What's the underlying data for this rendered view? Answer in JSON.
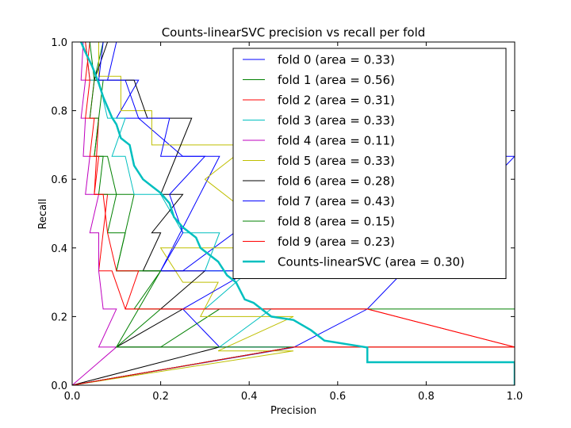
{
  "chart_data": {
    "type": "line",
    "title": "Counts-linearSVC precision vs recall per fold",
    "xlabel": "Precision",
    "ylabel": "Recall",
    "xlim": [
      0.0,
      1.0
    ],
    "ylim": [
      0.0,
      1.0
    ],
    "xticks": [
      "0.0",
      "0.2",
      "0.4",
      "0.6",
      "0.8",
      "1.0"
    ],
    "yticks": [
      "0.0",
      "0.2",
      "0.4",
      "0.6",
      "0.8",
      "1.0"
    ],
    "grid": false,
    "legend_position": "upper-right",
    "series": [
      {
        "name": "fold 0 (area = 0.33)",
        "color": "#0000ff",
        "width": 1,
        "points": [
          [
            0.0,
            0.0
          ],
          [
            0.5,
            0.11
          ],
          [
            0.667,
            0.222
          ],
          [
            1.0,
            0.667
          ],
          [
            0.6,
            0.667
          ],
          [
            0.25,
            0.333
          ],
          [
            0.2,
            0.333
          ],
          [
            0.333,
            0.667
          ],
          [
            0.25,
            0.667
          ],
          [
            0.15,
            0.778
          ],
          [
            0.1,
            0.778
          ],
          [
            0.15,
            0.889
          ],
          [
            0.08,
            0.889
          ],
          [
            0.1,
            1.0
          ]
        ]
      },
      {
        "name": "fold 1 (area = 0.56)",
        "color": "#008000",
        "width": 1,
        "points": [
          [
            0.0,
            0.0
          ],
          [
            0.5,
            0.111
          ],
          [
            1.0,
            0.111
          ],
          [
            1.0,
            0.222
          ],
          [
            0.333,
            0.222
          ],
          [
            0.2,
            0.111
          ],
          [
            0.1,
            0.111
          ],
          [
            0.2,
            0.333
          ],
          [
            0.1,
            0.333
          ],
          [
            0.14,
            0.556
          ],
          [
            0.1,
            0.556
          ],
          [
            0.08,
            0.667
          ],
          [
            0.05,
            0.667
          ],
          [
            0.07,
            0.889
          ],
          [
            0.05,
            0.889
          ],
          [
            0.07,
            1.0
          ],
          [
            0.45,
            1.0
          ]
        ]
      },
      {
        "name": "fold 2 (area = 0.31)",
        "color": "#ff0000",
        "width": 1,
        "points": [
          [
            0.0,
            0.0
          ],
          [
            0.5,
            0.111
          ],
          [
            1.0,
            0.111
          ],
          [
            0.667,
            0.222
          ],
          [
            0.12,
            0.222
          ],
          [
            0.09,
            0.333
          ],
          [
            0.06,
            0.333
          ],
          [
            0.08,
            0.556
          ],
          [
            0.05,
            0.556
          ],
          [
            0.06,
            0.778
          ],
          [
            0.04,
            0.778
          ],
          [
            0.05,
            0.889
          ],
          [
            0.03,
            0.889
          ],
          [
            0.04,
            1.0
          ]
        ]
      },
      {
        "name": "fold 3 (area = 0.33)",
        "color": "#00bfbf",
        "width": 1,
        "points": [
          [
            0.0,
            0.0
          ],
          [
            0.5,
            0.111
          ],
          [
            0.333,
            0.111
          ],
          [
            0.45,
            0.222
          ],
          [
            0.3,
            0.222
          ],
          [
            0.4,
            0.333
          ],
          [
            0.3,
            0.333
          ],
          [
            0.333,
            0.444
          ],
          [
            0.25,
            0.444
          ],
          [
            0.2,
            0.556
          ],
          [
            0.14,
            0.556
          ],
          [
            0.12,
            0.667
          ],
          [
            0.09,
            0.667
          ],
          [
            0.12,
            0.778
          ],
          [
            0.08,
            0.778
          ],
          [
            0.06,
            0.889
          ],
          [
            0.04,
            0.889
          ],
          [
            0.03,
            1.0
          ]
        ]
      },
      {
        "name": "fold 4 (area = 0.11)",
        "color": "#bf00bf",
        "width": 1,
        "points": [
          [
            0.0,
            0.0
          ],
          [
            0.1,
            0.111
          ],
          [
            0.06,
            0.111
          ],
          [
            0.1,
            0.222
          ],
          [
            0.07,
            0.222
          ],
          [
            0.06,
            0.333
          ],
          [
            0.06,
            0.444
          ],
          [
            0.04,
            0.444
          ],
          [
            0.06,
            0.556
          ],
          [
            0.03,
            0.556
          ],
          [
            0.04,
            0.667
          ],
          [
            0.025,
            0.667
          ],
          [
            0.03,
            0.778
          ],
          [
            0.02,
            0.778
          ],
          [
            0.03,
            0.889
          ],
          [
            0.02,
            0.889
          ],
          [
            0.025,
            1.0
          ]
        ]
      },
      {
        "name": "fold 5 (area = 0.33)",
        "color": "#bfbf00",
        "width": 1,
        "points": [
          [
            0.0,
            0.0
          ],
          [
            0.5,
            0.1
          ],
          [
            0.33,
            0.1
          ],
          [
            0.5,
            0.2
          ],
          [
            0.29,
            0.2
          ],
          [
            0.33,
            0.3
          ],
          [
            0.25,
            0.3
          ],
          [
            0.2,
            0.4
          ],
          [
            0.45,
            0.4
          ],
          [
            0.4,
            0.5
          ],
          [
            0.6,
            0.5
          ],
          [
            0.4,
            0.5
          ],
          [
            0.3,
            0.6
          ],
          [
            0.4,
            0.7
          ],
          [
            0.18,
            0.7
          ],
          [
            0.18,
            0.8
          ],
          [
            0.11,
            0.8
          ],
          [
            0.11,
            0.9
          ],
          [
            0.06,
            0.9
          ],
          [
            0.06,
            1.0
          ]
        ]
      },
      {
        "name": "fold 6 (area = 0.28)",
        "color": "#000000",
        "width": 1,
        "points": [
          [
            0.0,
            0.0
          ],
          [
            0.333,
            0.111
          ],
          [
            0.1,
            0.111
          ],
          [
            0.25,
            0.222
          ],
          [
            0.2,
            0.222
          ],
          [
            0.3,
            0.333
          ],
          [
            0.16,
            0.333
          ],
          [
            0.2,
            0.444
          ],
          [
            0.18,
            0.444
          ],
          [
            0.25,
            0.556
          ],
          [
            0.2,
            0.556
          ],
          [
            0.27,
            0.778
          ],
          [
            0.17,
            0.778
          ],
          [
            0.14,
            0.889
          ],
          [
            0.05,
            0.889
          ],
          [
            0.08,
            1.0
          ]
        ]
      },
      {
        "name": "fold 7 (area = 0.43)",
        "color": "#0000ff",
        "width": 1,
        "points": [
          [
            0.0,
            0.0
          ],
          [
            0.5,
            0.111
          ],
          [
            0.333,
            0.111
          ],
          [
            0.25,
            0.222
          ],
          [
            0.4,
            0.333
          ],
          [
            0.2,
            0.333
          ],
          [
            0.25,
            0.444
          ],
          [
            0.22,
            0.556
          ],
          [
            0.3,
            0.667
          ],
          [
            0.2,
            0.667
          ],
          [
            0.22,
            0.778
          ],
          [
            0.15,
            0.778
          ],
          [
            0.12,
            0.889
          ],
          [
            0.06,
            0.889
          ],
          [
            0.07,
            1.0
          ]
        ]
      },
      {
        "name": "fold 8 (area = 0.15)",
        "color": "#008000",
        "width": 1,
        "points": [
          [
            0.0,
            0.0
          ],
          [
            0.5,
            0.111
          ],
          [
            0.1,
            0.111
          ],
          [
            0.2,
            0.222
          ],
          [
            0.14,
            0.222
          ],
          [
            0.2,
            0.333
          ],
          [
            0.1,
            0.333
          ],
          [
            0.12,
            0.444
          ],
          [
            0.08,
            0.444
          ],
          [
            0.1,
            0.556
          ],
          [
            0.06,
            0.556
          ],
          [
            0.07,
            0.667
          ],
          [
            0.05,
            0.667
          ],
          [
            0.06,
            0.778
          ],
          [
            0.04,
            0.778
          ],
          [
            0.05,
            0.889
          ],
          [
            0.04,
            1.0
          ]
        ]
      },
      {
        "name": "fold 9 (area = 0.23)",
        "color": "#ff0000",
        "width": 1,
        "points": [
          [
            0.0,
            0.0
          ],
          [
            0.5,
            0.111
          ],
          [
            1.0,
            0.111
          ],
          [
            0.667,
            0.222
          ],
          [
            0.12,
            0.222
          ],
          [
            0.15,
            0.333
          ],
          [
            0.1,
            0.333
          ],
          [
            0.08,
            0.444
          ],
          [
            0.07,
            0.556
          ],
          [
            0.05,
            0.556
          ],
          [
            0.06,
            0.667
          ],
          [
            0.04,
            0.667
          ],
          [
            0.05,
            0.778
          ],
          [
            0.03,
            0.778
          ],
          [
            0.04,
            0.889
          ],
          [
            0.03,
            1.0
          ]
        ]
      },
      {
        "name": "Counts-linearSVC (area = 0.30)",
        "color": "#00bfbf",
        "width": 2.5,
        "points": [
          [
            1.0,
            0.0
          ],
          [
            1.0,
            0.067
          ],
          [
            0.667,
            0.067
          ],
          [
            0.667,
            0.11
          ],
          [
            0.57,
            0.13
          ],
          [
            0.54,
            0.16
          ],
          [
            0.5,
            0.19
          ],
          [
            0.45,
            0.2
          ],
          [
            0.41,
            0.24
          ],
          [
            0.39,
            0.25
          ],
          [
            0.37,
            0.3
          ],
          [
            0.35,
            0.32
          ],
          [
            0.33,
            0.36
          ],
          [
            0.31,
            0.38
          ],
          [
            0.29,
            0.4
          ],
          [
            0.28,
            0.43
          ],
          [
            0.26,
            0.45
          ],
          [
            0.25,
            0.46
          ],
          [
            0.23,
            0.49
          ],
          [
            0.22,
            0.53
          ],
          [
            0.2,
            0.56
          ],
          [
            0.18,
            0.58
          ],
          [
            0.16,
            0.6
          ],
          [
            0.14,
            0.64
          ],
          [
            0.13,
            0.7
          ],
          [
            0.11,
            0.72
          ],
          [
            0.1,
            0.76
          ],
          [
            0.09,
            0.78
          ],
          [
            0.07,
            0.84
          ],
          [
            0.06,
            0.88
          ],
          [
            0.045,
            0.93
          ],
          [
            0.03,
            0.97
          ],
          [
            0.02,
            1.0
          ]
        ]
      }
    ]
  }
}
